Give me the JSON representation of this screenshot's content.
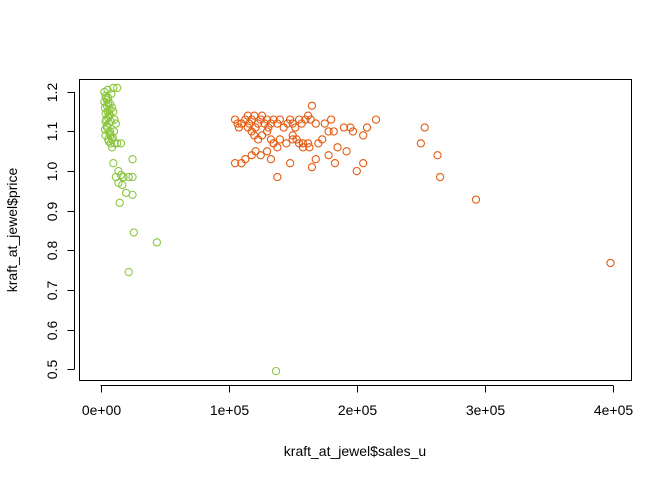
{
  "chart_data": {
    "type": "scatter",
    "xlabel": "kraft_at_jewel$sales_u",
    "ylabel": "kraft_at_jewel$price",
    "xlim": [
      -16000,
      414000
    ],
    "ylim": [
      0.47,
      1.23
    ],
    "grid": false,
    "legend": "none",
    "x_ticks": [
      0,
      100000,
      200000,
      300000,
      400000
    ],
    "x_tick_labels": [
      "0e+00",
      "1e+05",
      "2e+05",
      "3e+05",
      "4e+05"
    ],
    "y_ticks": [
      0.5,
      0.6,
      0.7,
      0.8,
      0.9,
      1.0,
      1.1,
      1.2
    ],
    "y_tick_labels": [
      "0.5",
      "0.6",
      "0.7",
      "0.8",
      "0.9",
      "1.0",
      "1.1",
      "1.2"
    ],
    "series": [
      {
        "color": "#8cc63f",
        "points": [
          [
            3000,
            1.2
          ],
          [
            4000,
            1.19
          ],
          [
            5000,
            1.18
          ],
          [
            6000,
            1.17
          ],
          [
            3500,
            1.16
          ],
          [
            5500,
            1.15
          ],
          [
            7000,
            1.14
          ],
          [
            4500,
            1.13
          ],
          [
            6500,
            1.12
          ],
          [
            5000,
            1.11
          ],
          [
            7500,
            1.1
          ],
          [
            4000,
            1.09
          ],
          [
            6000,
            1.08
          ],
          [
            8000,
            1.07
          ],
          [
            9000,
            1.06
          ],
          [
            3000,
            1.175
          ],
          [
            5000,
            1.165
          ],
          [
            7000,
            1.155
          ],
          [
            4000,
            1.145
          ],
          [
            6000,
            1.135
          ],
          [
            8000,
            1.125
          ],
          [
            5000,
            1.115
          ],
          [
            3500,
            1.105
          ],
          [
            7000,
            1.095
          ],
          [
            9500,
            1.085
          ],
          [
            6500,
            1.075
          ],
          [
            4500,
            1.185
          ],
          [
            8500,
            1.195
          ],
          [
            5500,
            1.205
          ],
          [
            7500,
            1.17
          ],
          [
            9000,
            1.16
          ],
          [
            10000,
            1.15
          ],
          [
            11000,
            1.13
          ],
          [
            12000,
            1.12
          ],
          [
            10500,
            1.1
          ],
          [
            8000,
            1.09
          ],
          [
            9000,
            1.08
          ],
          [
            6000,
            1.185
          ],
          [
            7000,
            1.145
          ],
          [
            4000,
            1.125
          ],
          [
            10000,
            1.21
          ],
          [
            13000,
            1.21
          ],
          [
            11000,
            1.07
          ],
          [
            13000,
            1.07
          ],
          [
            16000,
            1.07
          ],
          [
            10000,
            1.02
          ],
          [
            14000,
            1.0
          ],
          [
            16000,
            0.99
          ],
          [
            12000,
            0.985
          ],
          [
            18000,
            0.985
          ],
          [
            22000,
            0.985
          ],
          [
            25000,
            0.985
          ],
          [
            14000,
            0.97
          ],
          [
            17000,
            0.965
          ],
          [
            20000,
            0.945
          ],
          [
            15000,
            0.92
          ],
          [
            25000,
            0.94
          ],
          [
            25000,
            1.03
          ],
          [
            26000,
            0.845
          ],
          [
            44000,
            0.82
          ],
          [
            22000,
            0.745
          ],
          [
            137000,
            0.495
          ]
        ]
      },
      {
        "color": "#e55a0f",
        "points": [
          [
            105000,
            1.13
          ],
          [
            107000,
            1.12
          ],
          [
            108000,
            1.11
          ],
          [
            110000,
            1.12
          ],
          [
            113000,
            1.13
          ],
          [
            115000,
            1.14
          ],
          [
            116000,
            1.12
          ],
          [
            118000,
            1.13
          ],
          [
            120000,
            1.14
          ],
          [
            121000,
            1.11
          ],
          [
            123000,
            1.12
          ],
          [
            125000,
            1.13
          ],
          [
            126000,
            1.14
          ],
          [
            128000,
            1.12
          ],
          [
            130000,
            1.13
          ],
          [
            131000,
            1.11
          ],
          [
            133000,
            1.12
          ],
          [
            135000,
            1.13
          ],
          [
            138000,
            1.12
          ],
          [
            140000,
            1.13
          ],
          [
            143000,
            1.11
          ],
          [
            146000,
            1.12
          ],
          [
            148000,
            1.13
          ],
          [
            150000,
            1.12
          ],
          [
            152000,
            1.11
          ],
          [
            155000,
            1.13
          ],
          [
            157000,
            1.12
          ],
          [
            160000,
            1.13
          ],
          [
            162000,
            1.14
          ],
          [
            164000,
            1.13
          ],
          [
            165000,
            1.165
          ],
          [
            168000,
            1.12
          ],
          [
            115000,
            1.11
          ],
          [
            118000,
            1.1
          ],
          [
            120000,
            1.09
          ],
          [
            123000,
            1.08
          ],
          [
            126000,
            1.09
          ],
          [
            130000,
            1.1
          ],
          [
            133000,
            1.08
          ],
          [
            135000,
            1.07
          ],
          [
            138000,
            1.06
          ],
          [
            140000,
            1.08
          ],
          [
            145000,
            1.07
          ],
          [
            150000,
            1.09
          ],
          [
            153000,
            1.08
          ],
          [
            158000,
            1.07
          ],
          [
            163000,
            1.06
          ],
          [
            170000,
            1.07
          ],
          [
            173000,
            1.08
          ],
          [
            175000,
            1.12
          ],
          [
            178000,
            1.1
          ],
          [
            180000,
            1.13
          ],
          [
            182000,
            1.1
          ],
          [
            185000,
            1.06
          ],
          [
            190000,
            1.11
          ],
          [
            192000,
            1.05
          ],
          [
            195000,
            1.11
          ],
          [
            197000,
            1.1
          ],
          [
            205000,
            1.09
          ],
          [
            208000,
            1.11
          ],
          [
            215000,
            1.13
          ],
          [
            105000,
            1.02
          ],
          [
            110000,
            1.02
          ],
          [
            113000,
            1.03
          ],
          [
            118000,
            1.04
          ],
          [
            121000,
            1.05
          ],
          [
            125000,
            1.04
          ],
          [
            130000,
            1.05
          ],
          [
            133000,
            1.03
          ],
          [
            135000,
            1.07
          ],
          [
            138000,
            0.985
          ],
          [
            148000,
            1.02
          ],
          [
            150000,
            1.08
          ],
          [
            155000,
            1.07
          ],
          [
            158000,
            1.06
          ],
          [
            162000,
            1.07
          ],
          [
            165000,
            1.01
          ],
          [
            168000,
            1.03
          ],
          [
            178000,
            1.04
          ],
          [
            183000,
            1.02
          ],
          [
            200000,
            1.0
          ],
          [
            205000,
            1.02
          ],
          [
            250000,
            1.07
          ],
          [
            253000,
            1.11
          ],
          [
            263000,
            1.04
          ],
          [
            265000,
            0.985
          ],
          [
            293000,
            0.928
          ],
          [
            398000,
            0.768
          ]
        ]
      }
    ]
  }
}
